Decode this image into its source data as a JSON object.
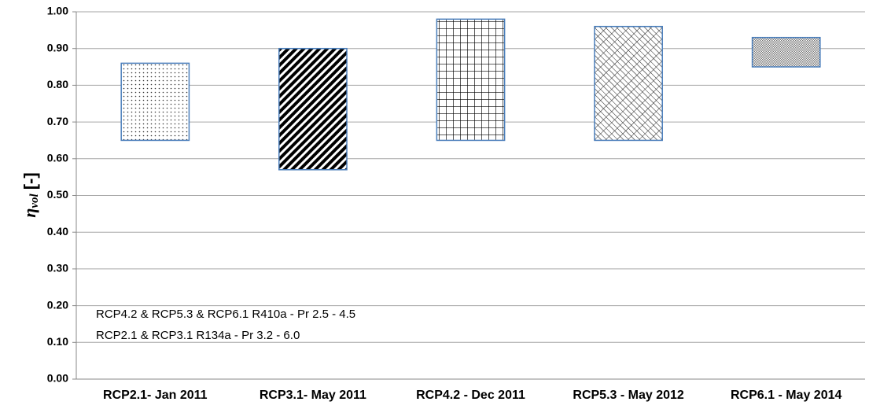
{
  "chart_data": {
    "type": "range_bar",
    "ylabel": "η",
    "ylabel_sub": "vol",
    "ylabel_unit": "[-]",
    "categories": [
      "RCP2.1- Jan 2011",
      "RCP3.1- May 2011",
      "RCP4.2 - Dec 2011",
      "RCP5.3 - May 2012",
      "RCP6.1 - May 2014"
    ],
    "low": [
      0.65,
      0.57,
      0.65,
      0.65,
      0.85
    ],
    "high": [
      0.86,
      0.9,
      0.98,
      0.96,
      0.93
    ],
    "patterns": [
      "dots",
      "stripes",
      "grid",
      "diamonds",
      "fine-check"
    ],
    "edge_color": "#4a7ebb",
    "ylim": [
      0,
      1
    ],
    "yticks": [
      {
        "value": 0,
        "label": "0.00"
      },
      {
        "value": 0.1,
        "label": "0.10"
      },
      {
        "value": 0.2,
        "label": "0.20"
      },
      {
        "value": 0.3,
        "label": "0.30"
      },
      {
        "value": 0.4,
        "label": "0.40"
      },
      {
        "value": 0.5,
        "label": "0.50"
      },
      {
        "value": 0.6,
        "label": "0.60"
      },
      {
        "value": 0.7,
        "label": "0.70"
      },
      {
        "value": 0.8,
        "label": "0.80"
      },
      {
        "value": 0.9,
        "label": "0.90"
      },
      {
        "value": 1,
        "label": "1.00"
      }
    ],
    "grid": true,
    "annotations": [
      "RCP4.2 & RCP5.3 & RCP6.1  R410a -  Pr 2.5 - 4.5",
      "RCP2.1 & RCP3.1  R134a - Pr  3.2 - 6.0"
    ]
  }
}
